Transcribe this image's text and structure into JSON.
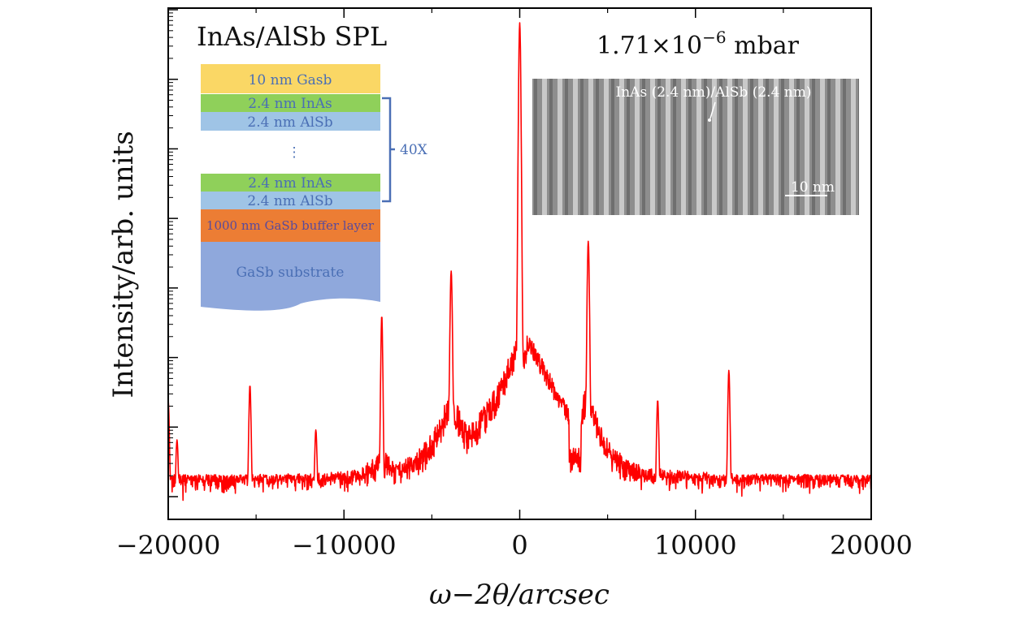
{
  "colors": {
    "trace": "#ff0000",
    "capping": "#fad765",
    "inas": "#8fd05a",
    "alsb": "#9fc4e6",
    "buffer": "#ec7d34",
    "substrate": "#8fa8dc",
    "brace": "#4a6fb5"
  },
  "chart_data": {
    "type": "line",
    "title": "",
    "xlabel": "ω−2θ/arcsec",
    "ylabel": "Intensity/arb. units",
    "xlim": [
      -20000,
      20000
    ],
    "x_ticks": [
      -20000,
      -10000,
      0,
      10000,
      20000
    ],
    "x_tick_labels": [
      "−20000",
      "−10000",
      "0",
      "10000",
      "20000"
    ],
    "y_scale": "log",
    "y_tick_labels_shown": false,
    "grid": false,
    "series": [
      {
        "color": "#ff0000",
        "peaks": [
          {
            "x": -20000,
            "level": 0.24
          },
          {
            "x": -19500,
            "level": 0.16
          },
          {
            "x": -15350,
            "level": 0.27
          },
          {
            "x": -11600,
            "level": 0.18
          },
          {
            "x": -7850,
            "level": 0.41
          },
          {
            "x": -3900,
            "level": 0.5
          },
          {
            "x": 0,
            "level": 1.0
          },
          {
            "x": 3900,
            "level": 0.56
          },
          {
            "x": 7850,
            "level": 0.24
          },
          {
            "x": 11900,
            "level": 0.3
          }
        ],
        "baseline_level": 0.06,
        "shoulder": {
          "x_from": 400,
          "x_to": 3200,
          "level": 0.36
        }
      }
    ],
    "annotations": {
      "sample": "InAs/AlSb SPL",
      "pressure": "1.71×10",
      "pressure_exponent": "−6",
      "pressure_unit": " mbar"
    }
  },
  "inset_structure": {
    "layers": [
      {
        "label": "10 nm Gasb",
        "kind": "capping"
      },
      {
        "label": "2.4 nm InAs",
        "kind": "inas"
      },
      {
        "label": "2.4 nm AlSb",
        "kind": "alsb"
      },
      {
        "label": "⋮",
        "kind": "gap"
      },
      {
        "label": "2.4 nm InAs",
        "kind": "inas"
      },
      {
        "label": "2.4 nm AlSb",
        "kind": "alsb"
      },
      {
        "label": "1000 nm GaSb buffer layer",
        "kind": "buffer"
      },
      {
        "label": "GaSb substrate",
        "kind": "substrate"
      }
    ],
    "repeat_label": "40X"
  },
  "inset_image": {
    "caption": "InAs (2.4 nm)/AlSb (2.4 nm)",
    "scale_bar": "10 nm"
  }
}
